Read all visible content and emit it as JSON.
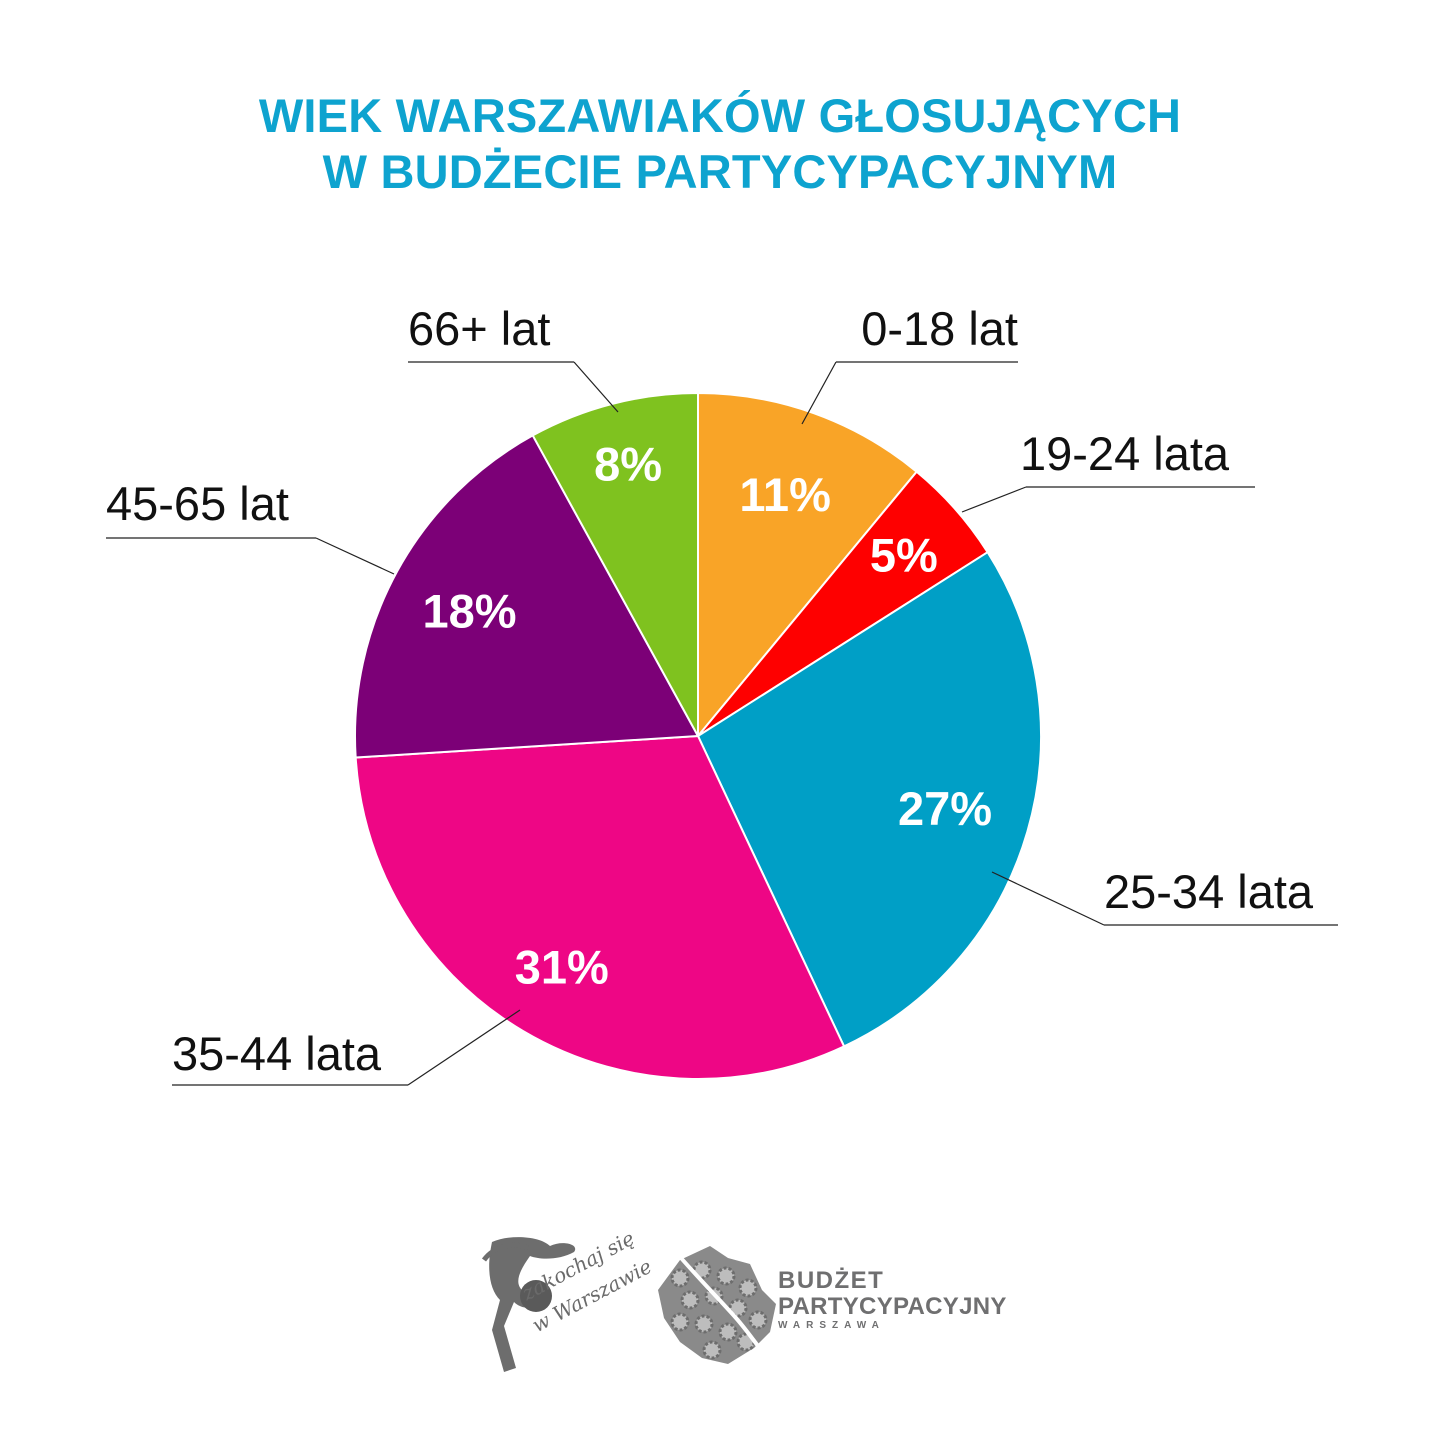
{
  "title": {
    "line1": "WIEK WARSZAWIAKÓW GŁOSUJĄCYCH",
    "line2": "W BUDŻECIE PARTYCYPACYJNYM"
  },
  "chart_data": {
    "type": "pie",
    "title": "WIEK WARSZAWIAKÓW GŁOSUJĄCYCH W BUDŻECIE PARTYCYPACYJNYM",
    "slices": [
      {
        "label": "0-18 lat",
        "value": 11,
        "value_label": "11%",
        "color": "#f9a427"
      },
      {
        "label": "19-24 lata",
        "value": 5,
        "value_label": "5%",
        "color": "#fe0000"
      },
      {
        "label": "25-34 lata",
        "value": 27,
        "value_label": "27%",
        "color": "#009fc6"
      },
      {
        "label": "35-44 lata",
        "value": 31,
        "value_label": "31%",
        "color": "#ee0685"
      },
      {
        "label": "45-65 lat",
        "value": 18,
        "value_label": "18%",
        "color": "#7c0077"
      },
      {
        "label": "66+ lat",
        "value": 8,
        "value_label": "8%",
        "color": "#7fc21f"
      }
    ]
  },
  "logos": {
    "zakochaj_line1": "zakochaj się",
    "zakochaj_line2": "w Warszawie",
    "budzet_line1": "BUDŻET",
    "budzet_line2": "PARTYCYPACYJNY",
    "budzet_line3": "WARSZAWA"
  }
}
